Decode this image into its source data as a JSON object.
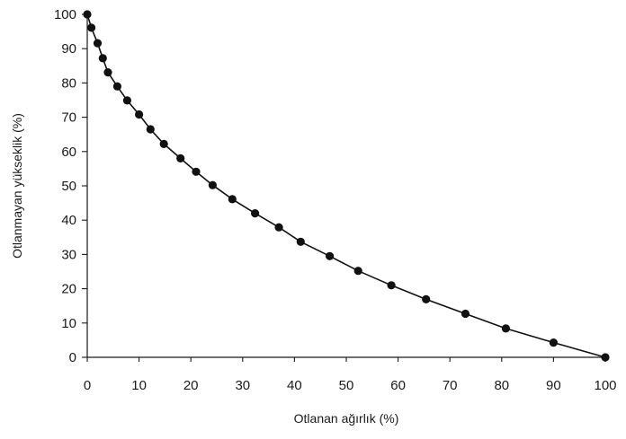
{
  "chart_data": {
    "type": "line",
    "title": "",
    "xlabel": "Otlanan ağırlık  (%)",
    "ylabel": "Otlanmayan yükseklik (%)",
    "xlim": [
      0,
      100
    ],
    "ylim": [
      0,
      100
    ],
    "xticks": [
      "0",
      "10",
      "20",
      "30",
      "40",
      "50",
      "60",
      "70",
      "80",
      "90",
      "100"
    ],
    "yticks": [
      "0",
      "10",
      "20",
      "30",
      "40",
      "50",
      "60",
      "70",
      "80",
      "90",
      "100"
    ],
    "grid": false,
    "legend": "none",
    "markers": "filled-circle",
    "colors": {
      "line": "#111111",
      "marker": "#111111",
      "axis": "#1a1a1a"
    },
    "series": [
      {
        "x": [
          0,
          0.8,
          2.0,
          3.0,
          4.0,
          5.8,
          7.7,
          10.0,
          12.2,
          14.8,
          18.0,
          21.0,
          24.2,
          28.0,
          32.4,
          37.0,
          41.2,
          46.8,
          52.3,
          58.7,
          65.4,
          73.0,
          80.8,
          90.0,
          100
        ],
        "y": [
          100,
          96.1,
          91.6,
          87.2,
          83.1,
          79.0,
          74.9,
          70.8,
          66.5,
          62.2,
          58.0,
          54.1,
          50.2,
          46.1,
          42.0,
          37.9,
          33.7,
          29.5,
          25.2,
          21.0,
          16.9,
          12.7,
          8.4,
          4.3,
          0
        ]
      }
    ]
  }
}
